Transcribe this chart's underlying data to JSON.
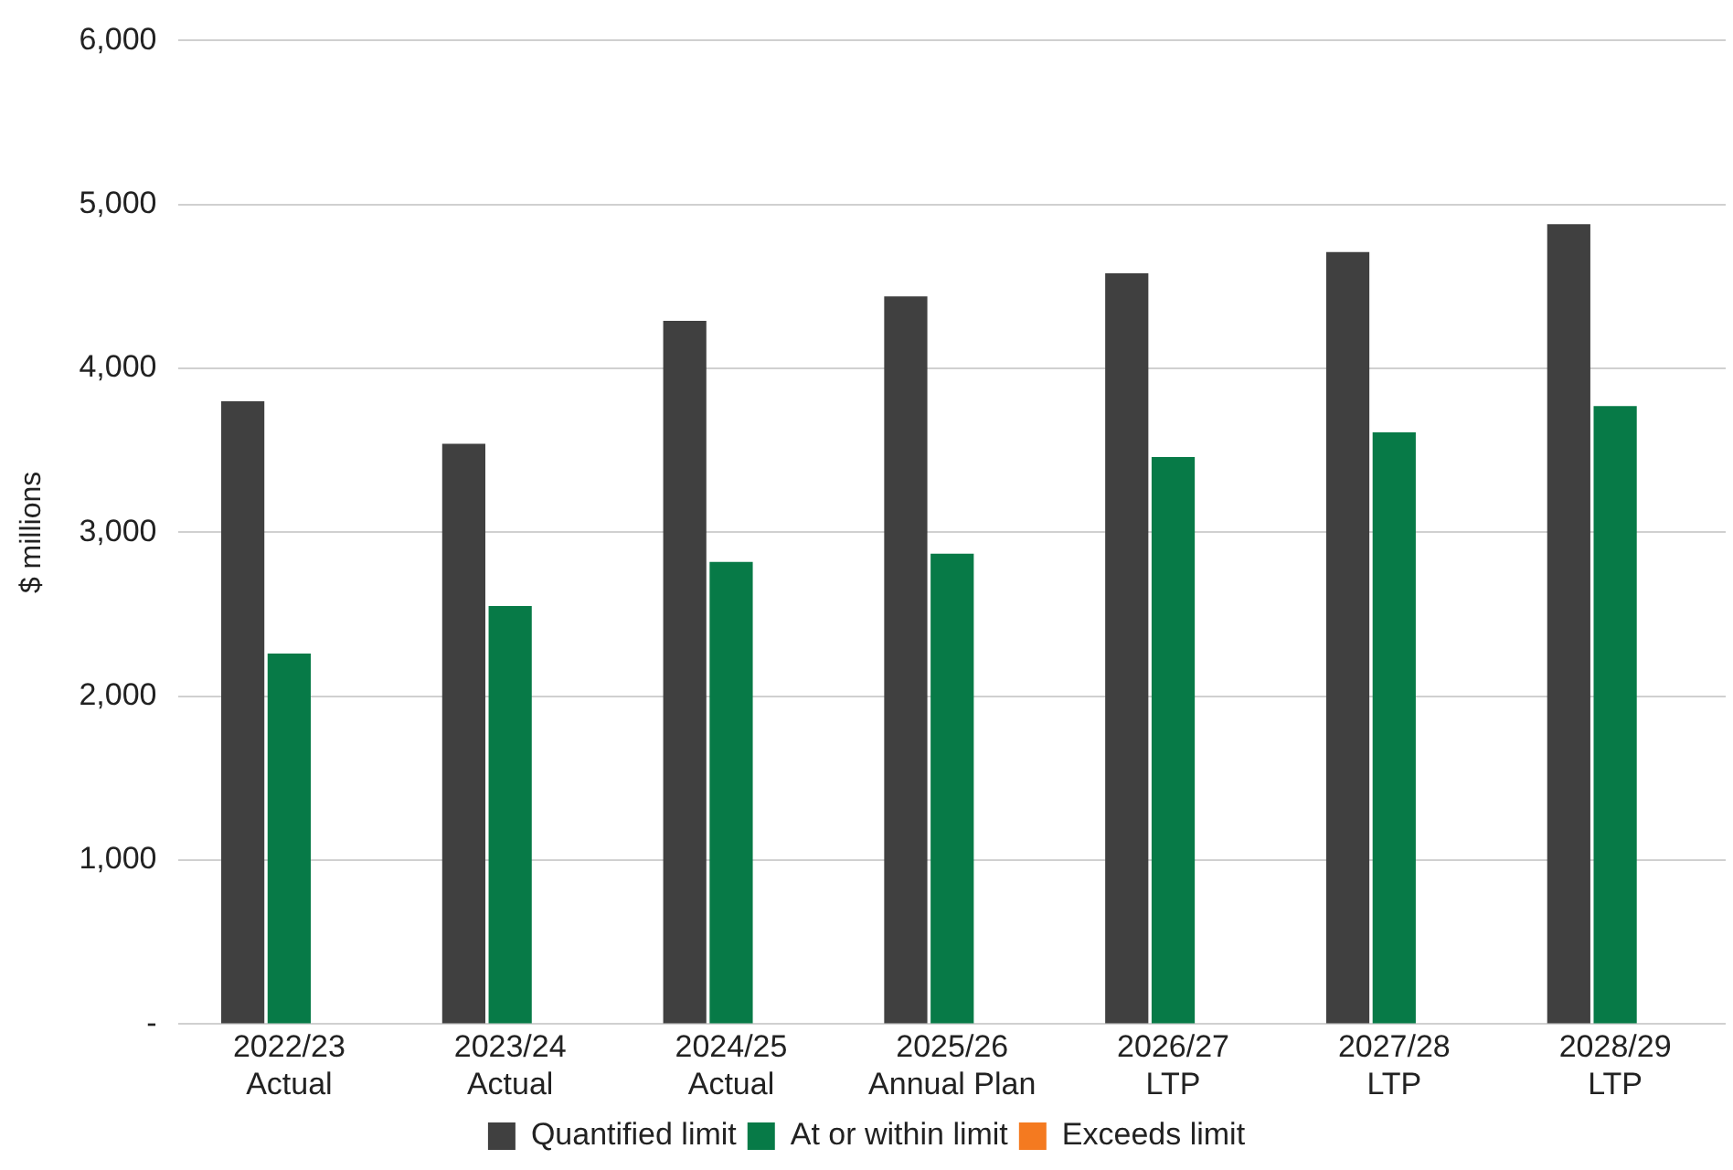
{
  "chart_data": {
    "type": "bar",
    "ylabel": "$ millions",
    "categories": [
      "2022/23\nActual",
      "2023/24\nActual",
      "2024/25\nActual",
      "2025/26\nAnnual Plan",
      "2026/27\nLTP",
      "2027/28\nLTP",
      "2028/29\nLTP"
    ],
    "series": [
      {
        "name": "Quantified limit",
        "color": "#404040",
        "values": [
          3800,
          3540,
          4290,
          4440,
          4580,
          4710,
          4880
        ]
      },
      {
        "name": "At or within limit",
        "color": "#077a47",
        "values": [
          2260,
          2550,
          2820,
          2870,
          3460,
          3610,
          3770
        ]
      },
      {
        "name": "Exceeds limit",
        "color": "#f47a20",
        "values": [
          0,
          0,
          0,
          0,
          0,
          0,
          0
        ]
      }
    ],
    "ylim": [
      0,
      6000
    ],
    "yticks": [
      {
        "value": 0,
        "label": "-"
      },
      {
        "value": 1000,
        "label": "1,000"
      },
      {
        "value": 2000,
        "label": "2,000"
      },
      {
        "value": 3000,
        "label": "3,000"
      },
      {
        "value": 4000,
        "label": "4,000"
      },
      {
        "value": 5000,
        "label": "5,000"
      },
      {
        "value": 6000,
        "label": "6,000"
      }
    ],
    "grid": "y",
    "legend": "bottom"
  }
}
